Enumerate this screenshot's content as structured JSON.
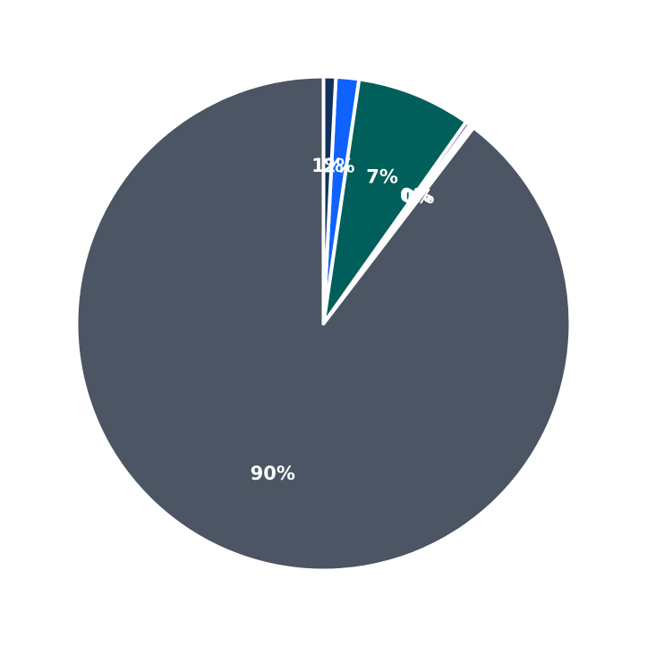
{
  "chart_data": {
    "type": "pie",
    "title": "",
    "legend": "none",
    "start_angle_deg": 90,
    "direction": "counterclockwise",
    "slices": [
      {
        "label": "90%",
        "value": 89.6,
        "color": "#4b5563"
      },
      {
        "label": "0%",
        "value": 0.3,
        "color": "#ffffff"
      },
      {
        "label": "0%",
        "value": 0.3,
        "color": "#7c4dcc"
      },
      {
        "label": "7%",
        "value": 7.5,
        "color": "#005f5a"
      },
      {
        "label": "2%",
        "value": 1.5,
        "color": "#0f62fe"
      },
      {
        "label": "1%",
        "value": 0.8,
        "color": "#12325c"
      }
    ]
  }
}
